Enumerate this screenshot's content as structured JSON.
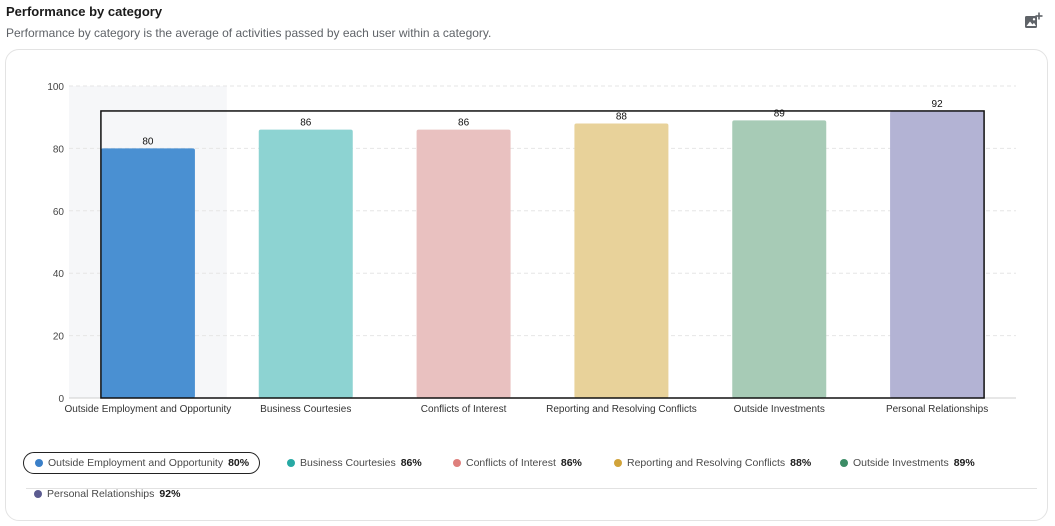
{
  "header": {
    "title": "Performance by category",
    "subtitle": "Performance by category is the average of activities passed by each user within a category."
  },
  "icons": {
    "export": "add-image-icon"
  },
  "chart_data": {
    "type": "bar",
    "title": "",
    "xlabel": "",
    "ylabel": "",
    "ylim": [
      0,
      100
    ],
    "yticks": [
      "0",
      "20",
      "40",
      "60",
      "80",
      "100"
    ],
    "grid": true,
    "legend_position": "bottom",
    "categories": [
      "Outside Employment and Opportunity",
      "Business Courtesies",
      "Conflicts of Interest",
      "Reporting and Resolving Conflicts",
      "Outside Investments",
      "Personal Relationships"
    ],
    "values": [
      80,
      86,
      86,
      88,
      89,
      92
    ],
    "data_labels": [
      "80",
      "86",
      "86",
      "88",
      "89",
      "92"
    ],
    "colors": [
      "#4a90d2",
      "#8dd3d2",
      "#e9c1c0",
      "#e8d29a",
      "#a7cbb6",
      "#b3b3d4"
    ],
    "highlighted_category": "Outside Employment and Opportunity"
  },
  "legend": {
    "items": [
      {
        "label": "Outside Employment and Opportunity",
        "pct": "80%",
        "color": "#3a7fc8"
      },
      {
        "label": "Business Courtesies",
        "pct": "86%",
        "color": "#27a9a4"
      },
      {
        "label": "Conflicts of Interest",
        "pct": "86%",
        "color": "#de7f7c"
      },
      {
        "label": "Reporting and Resolving Conflicts",
        "pct": "88%",
        "color": "#d1a33a"
      },
      {
        "label": "Outside Investments",
        "pct": "89%",
        "color": "#3c8c66"
      },
      {
        "label": "Personal Relationships",
        "pct": "92%",
        "color": "#5b5b90"
      }
    ]
  }
}
